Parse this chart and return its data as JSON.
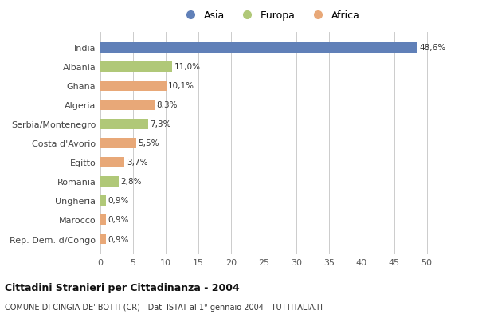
{
  "categories": [
    "India",
    "Albania",
    "Ghana",
    "Algeria",
    "Serbia/Montenegro",
    "Costa d'Avorio",
    "Egitto",
    "Romania",
    "Ungheria",
    "Marocco",
    "Rep. Dem. d/Congo"
  ],
  "values": [
    48.6,
    11.0,
    10.1,
    8.3,
    7.3,
    5.5,
    3.7,
    2.8,
    0.9,
    0.9,
    0.9
  ],
  "labels": [
    "48,6%",
    "11,0%",
    "10,1%",
    "8,3%",
    "7,3%",
    "5,5%",
    "3,7%",
    "2,8%",
    "0,9%",
    "0,9%",
    "0,9%"
  ],
  "colors": [
    "#6080b8",
    "#b0c878",
    "#e8a878",
    "#e8a878",
    "#b0c878",
    "#e8a878",
    "#e8a878",
    "#b0c878",
    "#b0c878",
    "#e8a878",
    "#e8a878"
  ],
  "legend_labels": [
    "Asia",
    "Europa",
    "Africa"
  ],
  "legend_colors": [
    "#6080b8",
    "#b0c878",
    "#e8a878"
  ],
  "title": "Cittadini Stranieri per Cittadinanza - 2004",
  "subtitle": "COMUNE DI CINGIA DE' BOTTI (CR) - Dati ISTAT al 1° gennaio 2004 - TUTTITALIA.IT",
  "xlim": [
    0,
    52
  ],
  "xticks": [
    0,
    5,
    10,
    15,
    20,
    25,
    30,
    35,
    40,
    45,
    50
  ],
  "bg_color": "#ffffff",
  "grid_color": "#cccccc"
}
